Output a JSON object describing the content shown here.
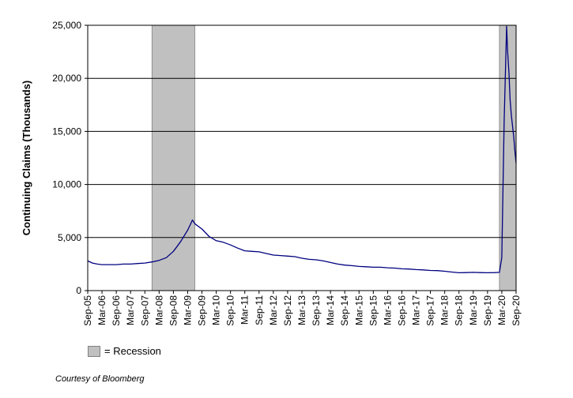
{
  "chart_data": {
    "type": "line",
    "ylabel": "Continuing Claims (Thousands)",
    "ylim": [
      0,
      25000
    ],
    "yticks": [
      0,
      5000,
      10000,
      15000,
      20000,
      25000
    ],
    "ytick_labels": [
      "0",
      "5,000",
      "10,000",
      "15,000",
      "20,000",
      "25,000"
    ],
    "xlim": [
      "2005-09",
      "2020-09"
    ],
    "xtick_labels": [
      "Sep-05",
      "Mar-06",
      "Sep-06",
      "Mar-07",
      "Sep-07",
      "Mar-08",
      "Sep-08",
      "Mar-09",
      "Sep-09",
      "Mar-10",
      "Sep-10",
      "Mar-11",
      "Sep-11",
      "Mar-12",
      "Sep-12",
      "Mar-13",
      "Sep-13",
      "Mar-14",
      "Sep-14",
      "Mar-15",
      "Sep-15",
      "Mar-16",
      "Sep-16",
      "Mar-17",
      "Sep-17",
      "Mar-18",
      "Sep-18",
      "Mar-19",
      "Sep-19",
      "Mar-20",
      "Sep-20"
    ],
    "grid": "horizontal",
    "recessions": [
      {
        "start": "2007-12",
        "end": "2009-06"
      },
      {
        "start": "2020-02",
        "end": "2020-09"
      }
    ],
    "series": [
      {
        "color": "#000080",
        "points": [
          [
            "2005-09",
            2800
          ],
          [
            "2005-11",
            2600
          ],
          [
            "2006-01",
            2500
          ],
          [
            "2006-03",
            2450
          ],
          [
            "2006-06",
            2450
          ],
          [
            "2006-09",
            2450
          ],
          [
            "2006-12",
            2500
          ],
          [
            "2007-03",
            2500
          ],
          [
            "2007-06",
            2550
          ],
          [
            "2007-09",
            2600
          ],
          [
            "2007-12",
            2700
          ],
          [
            "2008-03",
            2850
          ],
          [
            "2008-06",
            3100
          ],
          [
            "2008-09",
            3700
          ],
          [
            "2008-12",
            4600
          ],
          [
            "2009-03",
            5700
          ],
          [
            "2009-05",
            6650
          ],
          [
            "2009-06",
            6300
          ],
          [
            "2009-09",
            5800
          ],
          [
            "2009-12",
            5100
          ],
          [
            "2010-03",
            4700
          ],
          [
            "2010-06",
            4550
          ],
          [
            "2010-09",
            4300
          ],
          [
            "2010-12",
            4000
          ],
          [
            "2011-03",
            3750
          ],
          [
            "2011-06",
            3700
          ],
          [
            "2011-09",
            3650
          ],
          [
            "2011-12",
            3500
          ],
          [
            "2012-03",
            3350
          ],
          [
            "2012-06",
            3300
          ],
          [
            "2012-09",
            3250
          ],
          [
            "2012-12",
            3200
          ],
          [
            "2013-03",
            3050
          ],
          [
            "2013-06",
            2950
          ],
          [
            "2013-09",
            2900
          ],
          [
            "2013-12",
            2800
          ],
          [
            "2014-03",
            2650
          ],
          [
            "2014-06",
            2500
          ],
          [
            "2014-09",
            2400
          ],
          [
            "2014-12",
            2350
          ],
          [
            "2015-03",
            2280
          ],
          [
            "2015-06",
            2250
          ],
          [
            "2015-09",
            2200
          ],
          [
            "2015-12",
            2200
          ],
          [
            "2016-03",
            2150
          ],
          [
            "2016-06",
            2120
          ],
          [
            "2016-09",
            2050
          ],
          [
            "2016-12",
            2030
          ],
          [
            "2017-03",
            1980
          ],
          [
            "2017-06",
            1950
          ],
          [
            "2017-09",
            1900
          ],
          [
            "2017-12",
            1880
          ],
          [
            "2018-03",
            1820
          ],
          [
            "2018-06",
            1750
          ],
          [
            "2018-09",
            1680
          ],
          [
            "2018-12",
            1700
          ],
          [
            "2019-03",
            1720
          ],
          [
            "2019-06",
            1700
          ],
          [
            "2019-09",
            1680
          ],
          [
            "2019-12",
            1700
          ],
          [
            "2020-02",
            1720
          ],
          [
            "2020-03",
            3100
          ],
          [
            "2020-04",
            16000
          ],
          [
            "2020-05",
            24900
          ],
          [
            "2020-05-15",
            22500
          ],
          [
            "2020-06",
            20500
          ],
          [
            "2020-06-15",
            18000
          ],
          [
            "2020-07",
            16500
          ],
          [
            "2020-08",
            14500
          ],
          [
            "2020-08-15",
            13200
          ],
          [
            "2020-09",
            12000
          ]
        ]
      }
    ]
  },
  "legend": {
    "label": "= Recession",
    "color": "#c0c0c0"
  },
  "credit": "Courtesy of Bloomberg"
}
